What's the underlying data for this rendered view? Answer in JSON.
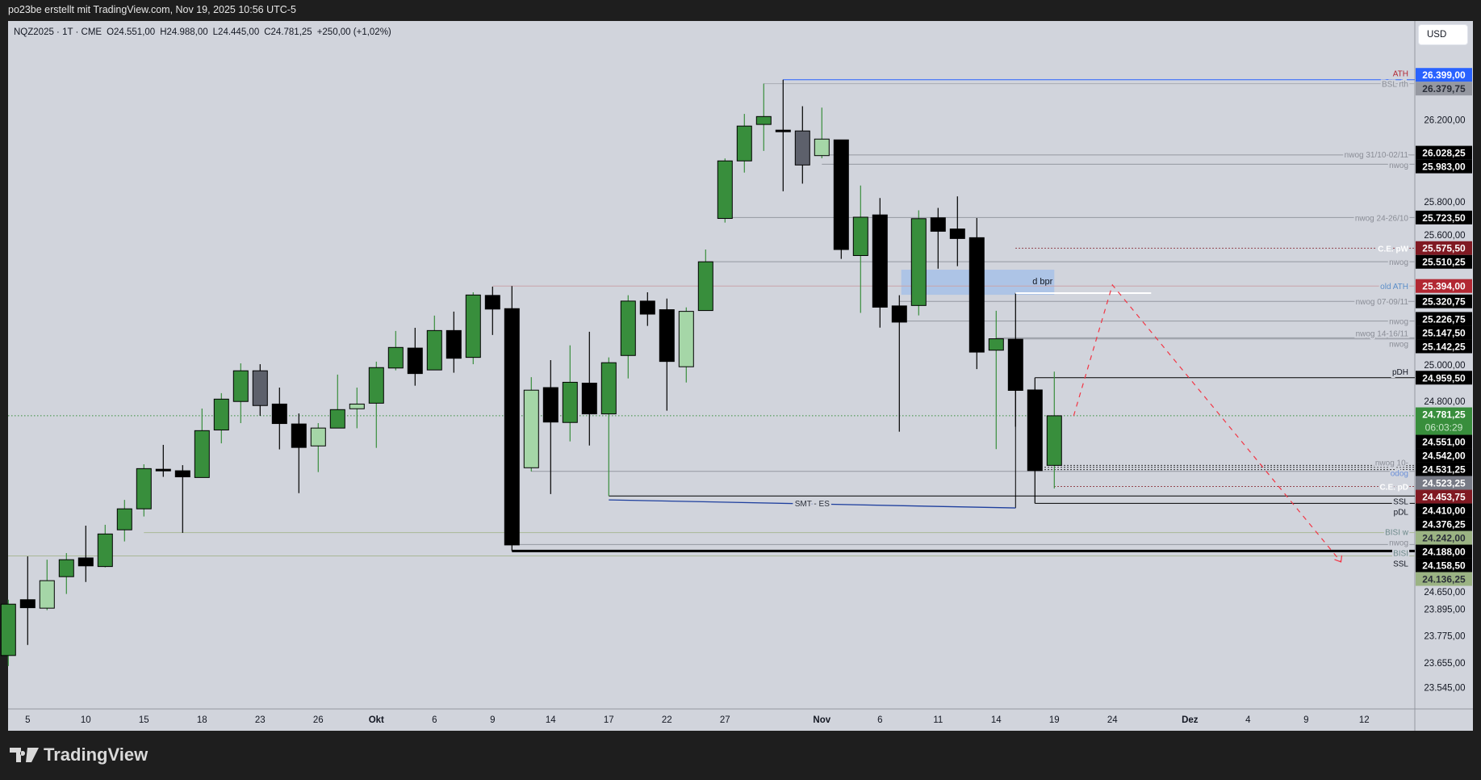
{
  "attribution": "po23be erstellt mit TradingView.com, Nov 19, 2025 10:56 UTC-5",
  "symbol_bar": {
    "symbol": "NQZ2025 · 1T · CME",
    "open": "O24.551,00",
    "high": "H24.988,00",
    "low": "L24.445,00",
    "close": "C24.781,25",
    "change": "+250,00 (+1,02%)"
  },
  "currency": "USD",
  "footer": {
    "logo_text": "TradingView"
  },
  "colors": {
    "background": "#d1d4dc",
    "frame": "#1e1e1e",
    "bull": "#388e3c",
    "bull_light": "#a5d6a7",
    "bear": "#000000",
    "bear_gray": "#5d606b",
    "current_price": "#388e3c",
    "projection": "#f23645",
    "bpr_zone": "#a7c1e8"
  },
  "chart_data": {
    "type": "candlestick",
    "scale": "log",
    "grid": false,
    "symbol": "NQZ2025",
    "candles": [
      {
        "o": 23688,
        "h": 23938,
        "l": 23641,
        "c": 23918,
        "style": "bull"
      },
      {
        "o": 23938,
        "h": 24134,
        "l": 23735,
        "c": 23902,
        "style": "bear"
      },
      {
        "o": 23900,
        "h": 24119,
        "l": 23891,
        "c": 24024,
        "style": "bull-light"
      },
      {
        "o": 24042,
        "h": 24149,
        "l": 23964,
        "c": 24119,
        "style": "bull"
      },
      {
        "o": 24127,
        "h": 24274,
        "l": 24018,
        "c": 24091,
        "style": "bear"
      },
      {
        "o": 24088,
        "h": 24278,
        "l": 24084,
        "c": 24236,
        "style": "bull"
      },
      {
        "o": 24255,
        "h": 24392,
        "l": 24202,
        "c": 24351,
        "style": "bull"
      },
      {
        "o": 24351,
        "h": 24556,
        "l": 24316,
        "c": 24536,
        "style": "bull"
      },
      {
        "o": 24533,
        "h": 24646,
        "l": 24498,
        "c": 24530,
        "style": "bear"
      },
      {
        "o": 24526,
        "h": 24552,
        "l": 24241,
        "c": 24498,
        "style": "bear"
      },
      {
        "o": 24495,
        "h": 24815,
        "l": 24495,
        "c": 24712,
        "style": "bull"
      },
      {
        "o": 24715,
        "h": 24887,
        "l": 24653,
        "c": 24859,
        "style": "bull"
      },
      {
        "o": 24848,
        "h": 25027,
        "l": 24747,
        "c": 24992,
        "style": "bull"
      },
      {
        "o": 24992,
        "h": 25023,
        "l": 24781,
        "c": 24829,
        "style": "bear-gray"
      },
      {
        "o": 24836,
        "h": 24913,
        "l": 24625,
        "c": 24745,
        "style": "bear"
      },
      {
        "o": 24743,
        "h": 24792,
        "l": 24423,
        "c": 24634,
        "style": "bear"
      },
      {
        "o": 24641,
        "h": 24747,
        "l": 24520,
        "c": 24724,
        "style": "bull-light"
      },
      {
        "o": 24724,
        "h": 24974,
        "l": 24724,
        "c": 24810,
        "style": "bull"
      },
      {
        "o": 24814,
        "h": 24913,
        "l": 24723,
        "c": 24836,
        "style": "bull-light"
      },
      {
        "o": 24840,
        "h": 25035,
        "l": 24632,
        "c": 25007,
        "style": "bull"
      },
      {
        "o": 25005,
        "h": 25180,
        "l": 24994,
        "c": 25102,
        "style": "bull"
      },
      {
        "o": 25099,
        "h": 25195,
        "l": 24922,
        "c": 24979,
        "style": "bear"
      },
      {
        "o": 24996,
        "h": 25253,
        "l": 24996,
        "c": 25182,
        "style": "bull"
      },
      {
        "o": 25182,
        "h": 25272,
        "l": 24983,
        "c": 25051,
        "style": "bear"
      },
      {
        "o": 25055,
        "h": 25364,
        "l": 25023,
        "c": 25351,
        "style": "bull"
      },
      {
        "o": 25349,
        "h": 25391,
        "l": 25161,
        "c": 25284,
        "style": "bear"
      },
      {
        "o": 25286,
        "h": 25394,
        "l": 24158.5,
        "c": 24186,
        "style": "bear"
      },
      {
        "o": 24540,
        "h": 24962,
        "l": 24523,
        "c": 24901,
        "style": "bull-light"
      },
      {
        "o": 24913,
        "h": 25042,
        "l": 24419,
        "c": 24752,
        "style": "bear"
      },
      {
        "o": 24750,
        "h": 25112,
        "l": 24662,
        "c": 24938,
        "style": "bull"
      },
      {
        "o": 24934,
        "h": 25176,
        "l": 24643,
        "c": 24790,
        "style": "bear"
      },
      {
        "o": 24790,
        "h": 25055,
        "l": 24410,
        "c": 25030,
        "style": "bull"
      },
      {
        "o": 25064,
        "h": 25350,
        "l": 24956,
        "c": 25322,
        "style": "bull"
      },
      {
        "o": 25322,
        "h": 25364,
        "l": 25204,
        "c": 25260,
        "style": "bear"
      },
      {
        "o": 25281,
        "h": 25334,
        "l": 24805,
        "c": 25036,
        "style": "bear"
      },
      {
        "o": 25011,
        "h": 25292,
        "l": 24937,
        "c": 25273,
        "style": "bull-light"
      },
      {
        "o": 25277,
        "h": 25569,
        "l": 25277,
        "c": 25510,
        "style": "bull"
      },
      {
        "o": 25719,
        "h": 26011,
        "l": 25699,
        "c": 25999,
        "style": "bull"
      },
      {
        "o": 25999,
        "h": 26230,
        "l": 25942,
        "c": 26170,
        "style": "bull"
      },
      {
        "o": 26178,
        "h": 26380,
        "l": 26048,
        "c": 26217,
        "style": "bull"
      },
      {
        "o": 26150,
        "h": 26399,
        "l": 25851,
        "c": 26146,
        "style": "bear"
      },
      {
        "o": 26146,
        "h": 26268,
        "l": 25888,
        "c": 25979,
        "style": "bear-gray"
      },
      {
        "o": 26025,
        "h": 26261,
        "l": 26012,
        "c": 26106,
        "style": "bull-light"
      },
      {
        "o": 26102,
        "h": 26102,
        "l": 25524,
        "c": 25569,
        "style": "bear"
      },
      {
        "o": 25540,
        "h": 25879,
        "l": 25266,
        "c": 25725,
        "style": "bull"
      },
      {
        "o": 25736,
        "h": 25818,
        "l": 25196,
        "c": 25293,
        "style": "bear"
      },
      {
        "o": 25299,
        "h": 25350,
        "l": 24707,
        "c": 25222,
        "style": "bear"
      },
      {
        "o": 25301,
        "h": 25758,
        "l": 25254,
        "c": 25718,
        "style": "bull"
      },
      {
        "o": 25722,
        "h": 25770,
        "l": 25477,
        "c": 25657,
        "style": "bear"
      },
      {
        "o": 25668,
        "h": 25826,
        "l": 25489,
        "c": 25622,
        "style": "bear"
      },
      {
        "o": 25626,
        "h": 25721,
        "l": 25000,
        "c": 25080,
        "style": "bear"
      },
      {
        "o": 25089,
        "h": 25276,
        "l": 24626,
        "c": 25143,
        "style": "bull"
      },
      {
        "o": 25141,
        "h": 25361,
        "l": 24730,
        "c": 24900,
        "style": "bear"
      },
      {
        "o": 24902,
        "h": 24959.5,
        "l": 24376.25,
        "c": 24527,
        "style": "bear"
      },
      {
        "o": 24551,
        "h": 24988,
        "l": 24445,
        "c": 24781.25,
        "style": "bull"
      }
    ],
    "x_axis_labels": [
      {
        "label": "5",
        "bar": 1
      },
      {
        "label": "10",
        "bar": 4
      },
      {
        "label": "15",
        "bar": 7
      },
      {
        "label": "18",
        "bar": 10
      },
      {
        "label": "23",
        "bar": 13
      },
      {
        "label": "26",
        "bar": 16
      },
      {
        "label": "Okt",
        "bar": 19,
        "bold": true
      },
      {
        "label": "6",
        "bar": 22
      },
      {
        "label": "9",
        "bar": 25
      },
      {
        "label": "14",
        "bar": 28
      },
      {
        "label": "17",
        "bar": 31
      },
      {
        "label": "22",
        "bar": 34
      },
      {
        "label": "27",
        "bar": 37
      },
      {
        "label": "Nov",
        "bar": 42,
        "bold": true
      },
      {
        "label": "6",
        "bar": 45
      },
      {
        "label": "11",
        "bar": 48
      },
      {
        "label": "14",
        "bar": 51
      },
      {
        "label": "19",
        "bar": 54
      },
      {
        "label": "24",
        "bar": 57
      },
      {
        "label": "Dez",
        "bar": 61,
        "bold": true
      },
      {
        "label": "4",
        "bar": 64
      },
      {
        "label": "9",
        "bar": 67
      },
      {
        "label": "12",
        "bar": 70
      }
    ],
    "y_axis_ticks": [
      {
        "value": 26200,
        "label": "26.200,00"
      },
      {
        "value": 25800,
        "label": "25.800,00"
      },
      {
        "value": 25600,
        "label": "25.600,00"
      },
      {
        "value": 25000,
        "label": "25.000,00"
      },
      {
        "value": 24800,
        "label": "24.800,00"
      },
      {
        "value": 24650,
        "label": "24.650,00"
      },
      {
        "value": 23895,
        "label": "23.895,00"
      },
      {
        "value": 23775,
        "label": "23.775,00"
      },
      {
        "value": 23655,
        "label": "23.655,00"
      },
      {
        "value": 23545,
        "label": "23.545,00"
      }
    ],
    "levels": [
      {
        "price": 26399,
        "label": "ATH",
        "color": "#2962ff",
        "style": "solid",
        "from_bar": 40,
        "label_color": "#b22833",
        "label_position": "above"
      },
      {
        "price": 26379.75,
        "label": "BSL rth",
        "color": "#a9acb4",
        "style": "solid",
        "from_bar": 39,
        "label_color": "#8a8d96",
        "label_position": "center"
      },
      {
        "price": 26028.25,
        "label": "nwog 31/10-02/11",
        "color": "#9598a1",
        "style": "solid",
        "from_bar": 42,
        "label_color": "#8a8d96",
        "label_position": "center"
      },
      {
        "price": 25983,
        "label": "nwog",
        "color": "#9598a1",
        "style": "solid",
        "from_bar": 42,
        "label_color": "#8a8d96",
        "label_position": "center"
      },
      {
        "price": 25723.5,
        "label": "nwog 24-26/10",
        "color": "#9598a1",
        "style": "solid",
        "from_bar": 37,
        "label_color": "#8a8d96",
        "label_position": "center"
      },
      {
        "price": 25575.5,
        "label": "C.E. pW",
        "color": "#801922",
        "style": "dotted",
        "from_bar": 52,
        "label_color": "#ffffff",
        "label_position": "center"
      },
      {
        "price": 25510.25,
        "label": "nwog",
        "color": "#9598a1",
        "style": "solid",
        "from_bar": 36,
        "label_color": "#8a8d96",
        "label_position": "center"
      },
      {
        "price": 25394,
        "label": "old ATH",
        "color": "#c9a3aa",
        "style": "solid",
        "from_bar": 25,
        "label_color": "#5b8ec9",
        "label_position": "center"
      },
      {
        "price": 25320.75,
        "label": "nwog 07-09/11",
        "color": "#9598a1",
        "style": "solid",
        "from_bar": 46,
        "label_color": "#8a8d96",
        "label_position": "center"
      },
      {
        "price": 25226.75,
        "label": "nwog",
        "color": "#9598a1",
        "style": "solid",
        "from_bar": 46,
        "label_color": "#8a8d96",
        "label_position": "center"
      },
      {
        "price": 25147.5,
        "label": "nwog 14-16/11",
        "color": "#9598a1",
        "style": "solid",
        "from_bar": 51,
        "label_color": "#8a8d96",
        "label_position": "center"
      },
      {
        "price": 25142.25,
        "label": "nwog",
        "color": "#9598a1",
        "style": "solid",
        "from_bar": 51,
        "label_color": "#8a8d96",
        "label_position": "center"
      },
      {
        "price": 24959.5,
        "label": "pDH",
        "color": "#000000",
        "style": "solid",
        "from_bar": 53,
        "label_color": "#131722",
        "label_position": "above"
      },
      {
        "price": 24781.25,
        "label": "",
        "color": "#388e3c",
        "style": "dotted",
        "from_bar": -1,
        "label_color": "#388e3c",
        "label_position": "center"
      },
      {
        "price": 24551,
        "label": "nwog 10-",
        "color": "#000000",
        "style": "dotted",
        "from_bar": 54,
        "label_color": "#8a8d96",
        "label_position": "center"
      },
      {
        "price": 24542,
        "label": "",
        "color": "#000000",
        "style": "dotted",
        "from_bar": 53.5,
        "label_color": "#8a8d96",
        "label_position": "center"
      },
      {
        "price": 24531.25,
        "label": "odog",
        "color": "#000000",
        "style": "dotted",
        "from_bar": 53.5,
        "label_color": "#6a8fd8",
        "label_position": "center"
      },
      {
        "price": 24523.25,
        "label": "",
        "color": "#9598a1",
        "style": "solid",
        "from_bar": 27,
        "label_color": "#8a8d96",
        "label_position": "center"
      },
      {
        "price": 24453.75,
        "label": "C.E. pD",
        "color": "#801922",
        "style": "dotted",
        "from_bar": 54,
        "label_color": "#ffffff",
        "label_position": "center"
      },
      {
        "price": 24410,
        "label": "SSL",
        "color": "#000000",
        "style": "solid",
        "from_bar": 31,
        "label_color": "#131722",
        "label_position": "below"
      },
      {
        "price": 24376.25,
        "label": "pDL",
        "color": "#000000",
        "style": "solid",
        "from_bar": 53,
        "label_color": "#131722",
        "label_position": "below"
      },
      {
        "price": 24242,
        "label": "BISI w",
        "color": "#a9b896",
        "style": "solid",
        "from_bar": 7,
        "label_color": "#6d8a8a",
        "label_position": "center"
      },
      {
        "price": 24188,
        "label": "nwog",
        "color": "#9598a1",
        "style": "solid",
        "from_bar": 26,
        "label_color": "#8a8d96",
        "label_position": "center"
      },
      {
        "price": 24158.5,
        "label": "SSL",
        "color": "#000000",
        "style": "thick",
        "from_bar": 26,
        "label_color": "#131722",
        "label_position": "below"
      },
      {
        "price": 24136.25,
        "label": "BISI",
        "color": "#a9b896",
        "style": "solid",
        "from_bar": -1,
        "label_color": "#6d8a8a",
        "label_position": "center"
      }
    ],
    "price_labels": [
      {
        "price": 26399,
        "text": "26.399,00",
        "bg": "#2962ff",
        "fg": "#ffffff"
      },
      {
        "price": 26379.75,
        "text": "26.379,75",
        "bg": "#9598a1",
        "fg": "#2a2e39"
      },
      {
        "price": 26028.25,
        "text": "26.028,25",
        "bg": "#000000",
        "fg": "#ffffff"
      },
      {
        "price": 25983,
        "text": "25.983,00",
        "bg": "#000000",
        "fg": "#ffffff"
      },
      {
        "price": 25723.5,
        "text": "25.723,50",
        "bg": "#000000",
        "fg": "#ffffff"
      },
      {
        "price": 25575.5,
        "text": "25.575,50",
        "bg": "#801922",
        "fg": "#ffffff"
      },
      {
        "price": 25510.25,
        "text": "25.510,25",
        "bg": "#000000",
        "fg": "#ffffff"
      },
      {
        "price": 25394,
        "text": "25.394,00",
        "bg": "#b22833",
        "fg": "#ffffff"
      },
      {
        "price": 25320.75,
        "text": "25.320,75",
        "bg": "#000000",
        "fg": "#ffffff"
      },
      {
        "price": 25226.75,
        "text": "25.226,75",
        "bg": "#000000",
        "fg": "#ffffff"
      },
      {
        "price": 25147.5,
        "text": "25.147,50",
        "bg": "#000000",
        "fg": "#ffffff"
      },
      {
        "price": 25142.25,
        "text": "25.142,25",
        "bg": "#000000",
        "fg": "#ffffff"
      },
      {
        "price": 24959.5,
        "text": "24.959,50",
        "bg": "#000000",
        "fg": "#ffffff"
      },
      {
        "price": 24781.25,
        "text": "24.781,25",
        "sub": "06:03:29",
        "bg": "#388e3c",
        "fg": "#ffffff",
        "sub_fg": "#c8e6c9"
      },
      {
        "price": 24551,
        "text": "24.551,00",
        "bg": "#000000",
        "fg": "#ffffff"
      },
      {
        "price": 24542,
        "text": "24.542,00",
        "bg": "#000000",
        "fg": "#ffffff"
      },
      {
        "price": 24531.25,
        "text": "24.531,25",
        "bg": "#000000",
        "fg": "#ffffff"
      },
      {
        "price": 24523.25,
        "text": "24.523,25",
        "bg": "#787b86",
        "fg": "#ffffff"
      },
      {
        "price": 24453.75,
        "text": "24.453,75",
        "bg": "#801922",
        "fg": "#ffffff"
      },
      {
        "price": 24410,
        "text": "24.410,00",
        "bg": "#000000",
        "fg": "#ffffff"
      },
      {
        "price": 24376.25,
        "text": "24.376,25",
        "bg": "#000000",
        "fg": "#ffffff"
      },
      {
        "price": 24242,
        "text": "24.242,00",
        "bg": "#9bb383",
        "fg": "#2a2e39"
      },
      {
        "price": 24188,
        "text": "24.188,00",
        "bg": "#000000",
        "fg": "#ffffff"
      },
      {
        "price": 24158.5,
        "text": "24.158,50",
        "bg": "#000000",
        "fg": "#ffffff"
      },
      {
        "price": 24136.25,
        "text": "24.136,25",
        "bg": "#9bb383",
        "fg": "#2a2e39"
      }
    ],
    "drawings": {
      "bpr_zone": {
        "label": "d bpr",
        "from_bar": 46.1,
        "to_bar": 54,
        "top": 25472,
        "bottom": 25352
      },
      "bpr_line": {
        "price": 25360,
        "from_bar": 52,
        "to_bar": 59,
        "color": "#ffffff"
      },
      "smt": {
        "label": "SMT - ES",
        "from": {
          "bar": 31,
          "price": 24392
        },
        "to": {
          "bar": 53,
          "price": 24355
        },
        "color": "#1e3f9e"
      },
      "projection": [
        {
          "bar": 55,
          "price": 24781
        },
        {
          "bar": 57,
          "price": 25399
        },
        {
          "bar": 68.8,
          "price": 24109
        }
      ]
    }
  }
}
